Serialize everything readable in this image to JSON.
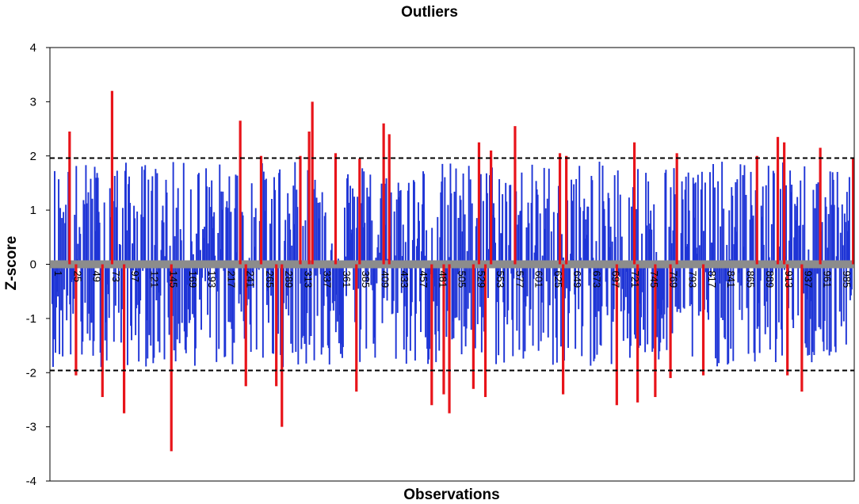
{
  "chart_data": {
    "type": "bar",
    "title": "Outliers",
    "xlabel": "Observations",
    "ylabel": "Z-score",
    "ylim": [
      -4,
      4
    ],
    "y_ticks": [
      4,
      3,
      2,
      1,
      0,
      -1,
      -2,
      -3,
      -4
    ],
    "x_tick_labels": [
      "1",
      "25",
      "49",
      "73",
      "97",
      "121",
      "145",
      "169",
      "193",
      "217",
      "241",
      "265",
      "289",
      "313",
      "337",
      "361",
      "385",
      "409",
      "433",
      "457",
      "481",
      "505",
      "529",
      "553",
      "577",
      "601",
      "625",
      "649",
      "673",
      "697",
      "721",
      "745",
      "769",
      "793",
      "817",
      "841",
      "865",
      "889",
      "913",
      "937",
      "961",
      "985"
    ],
    "n_observations": 1000,
    "thresholds": [
      1.96,
      -1.96
    ],
    "threshold_style": "dashed",
    "zero_band": true,
    "colors": {
      "normal": "#1f35d6",
      "outlier": "#e8141a",
      "zero_band": "#8c8c8c",
      "threshold": "#000000"
    },
    "outliers": [
      {
        "x": 6,
        "value": 2.45
      },
      {
        "x": 8,
        "value": -2.05
      },
      {
        "x": 17,
        "value": -2.45
      },
      {
        "x": 20,
        "value": 3.2
      },
      {
        "x": 24,
        "value": -2.75
      },
      {
        "x": 40,
        "value": -3.45
      },
      {
        "x": 63,
        "value": 2.65
      },
      {
        "x": 65,
        "value": -2.25
      },
      {
        "x": 70,
        "value": 2.0
      },
      {
        "x": 75,
        "value": -2.25
      },
      {
        "x": 77,
        "value": -3.0
      },
      {
        "x": 83,
        "value": 2.0
      },
      {
        "x": 86,
        "value": 2.45
      },
      {
        "x": 87,
        "value": 3.0
      },
      {
        "x": 95,
        "value": 2.05
      },
      {
        "x": 102,
        "value": -2.35
      },
      {
        "x": 103,
        "value": 1.95
      },
      {
        "x": 111,
        "value": 2.6
      },
      {
        "x": 113,
        "value": 2.4
      },
      {
        "x": 127,
        "value": -2.6
      },
      {
        "x": 131,
        "value": -2.4
      },
      {
        "x": 133,
        "value": -2.75
      },
      {
        "x": 141,
        "value": -2.3
      },
      {
        "x": 143,
        "value": 2.25
      },
      {
        "x": 145,
        "value": -2.45
      },
      {
        "x": 147,
        "value": 2.1
      },
      {
        "x": 155,
        "value": 2.55
      },
      {
        "x": 170,
        "value": 2.05
      },
      {
        "x": 171,
        "value": -2.4
      },
      {
        "x": 172,
        "value": 2.0
      },
      {
        "x": 189,
        "value": -2.6
      },
      {
        "x": 195,
        "value": 2.25
      },
      {
        "x": 196,
        "value": -2.55
      },
      {
        "x": 202,
        "value": -2.45
      },
      {
        "x": 207,
        "value": -2.1
      },
      {
        "x": 209,
        "value": 2.05
      },
      {
        "x": 218,
        "value": -2.05
      },
      {
        "x": 236,
        "value": 2.0
      },
      {
        "x": 243,
        "value": 2.35
      },
      {
        "x": 245,
        "value": 2.25
      },
      {
        "x": 246,
        "value": -2.05
      },
      {
        "x": 251,
        "value": -2.35
      },
      {
        "x": 257,
        "value": 2.15
      },
      {
        "x": 268,
        "value": 1.95
      }
    ]
  }
}
